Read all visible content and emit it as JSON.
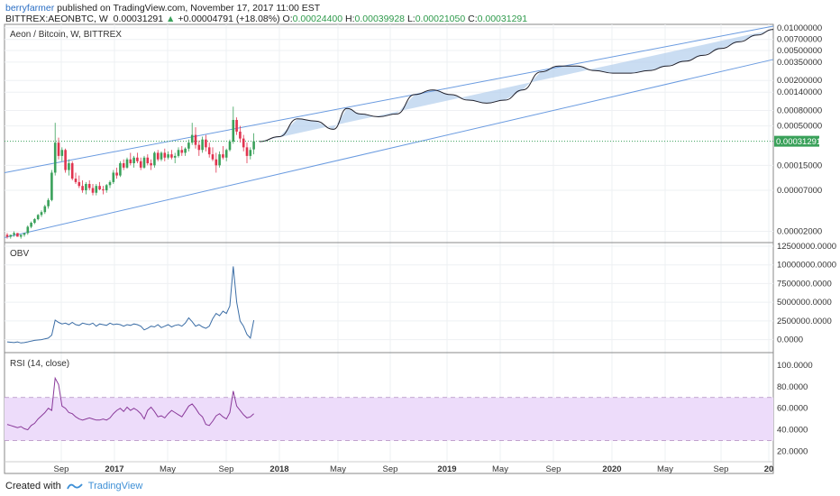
{
  "header": {
    "author": "berryfarmer",
    "published": " published on TradingView.com, November 17, 2017 11:00 EST",
    "symbol": "BITTREX:AEONBTC, W",
    "last": "0.00031291",
    "change_arrow": "▲",
    "change": "+0.00004791 (+18.08%)",
    "o_label": "O:",
    "o_val": "0.00024400",
    "h_label": "H:",
    "h_val": "0.00039928",
    "l_label": "L:",
    "l_val": "0.00021050",
    "c_label": "C:",
    "c_val": "0.00031291"
  },
  "footer": {
    "created_with": "Created with",
    "brand": "TradingView",
    "logo_icon": "tradingview-logo-icon"
  },
  "colors": {
    "up": "#3aa15a",
    "down": "#e0344f",
    "channel": "#6a9be0",
    "projection_fill": "#b8d2ee",
    "obv_line": "#3c6ea6",
    "rsi_line": "#8a3a9a",
    "rsi_band": "#eddcfa",
    "last_badge": "#3aa15a"
  },
  "chart_data": [
    {
      "type": "candlestick",
      "title": "Aeon / Bitcoin, W, BITTREX",
      "y_scale": "log",
      "ylim": [
        1.5e-05,
        0.0105
      ],
      "y_ticks": [
        "0.01000000",
        "0.00700000",
        "0.00500000",
        "0.00350000",
        "0.00200000",
        "0.00140000",
        "0.00080000",
        "0.00050000",
        "0.00015000",
        "0.00007000",
        "0.00002000"
      ],
      "x_ticks": [
        "Sep",
        "2017",
        "May",
        "Sep",
        "2018",
        "May",
        "Sep",
        "2019",
        "May",
        "Sep",
        "2020",
        "May",
        "Sep",
        "20"
      ],
      "last_price_label": "0.00031291",
      "last_price": 0.00031291,
      "candles": [
        [
          1.8e-05,
          1.9e-05,
          1.6e-05,
          1.7e-05
        ],
        [
          1.7e-05,
          1.8e-05,
          1.6e-05,
          1.8e-05
        ],
        [
          1.8e-05,
          2e-05,
          1.7e-05,
          1.9e-05
        ],
        [
          1.9e-05,
          1.9e-05,
          1.7e-05,
          1.7e-05
        ],
        [
          1.7e-05,
          1.8e-05,
          1.6e-05,
          1.8e-05
        ],
        [
          1.8e-05,
          1.9e-05,
          1.7e-05,
          1.9e-05
        ],
        [
          1.9e-05,
          2.4e-05,
          1.8e-05,
          2.3e-05
        ],
        [
          2.3e-05,
          2.7e-05,
          2.2e-05,
          2.6e-05
        ],
        [
          2.6e-05,
          3e-05,
          2.5e-05,
          2.9e-05
        ],
        [
          2.9e-05,
          3.4e-05,
          2.8e-05,
          3.3e-05
        ],
        [
          3.3e-05,
          3.8e-05,
          3.1e-05,
          3.6e-05
        ],
        [
          3.6e-05,
          4.5e-05,
          3.4e-05,
          4.3e-05
        ],
        [
          4.3e-05,
          5.5e-05,
          4e-05,
          5.2e-05
        ],
        [
          5.2e-05,
          0.00013,
          5e-05,
          0.00012
        ],
        [
          0.00012,
          0.00055,
          0.00011,
          0.0003
        ],
        [
          0.0003,
          0.00035,
          0.00018,
          0.0002
        ],
        [
          0.0002,
          0.00026,
          0.00017,
          0.00024
        ],
        [
          0.00024,
          0.00025,
          0.00012,
          0.00013
        ],
        [
          0.00013,
          0.00018,
          0.00011,
          0.00016
        ],
        [
          0.00016,
          0.00017,
          9.5e-05,
          0.0001
        ],
        [
          0.0001,
          0.00012,
          8.5e-05,
          9e-05
        ],
        [
          9e-05,
          0.00011,
          7.5e-05,
          8e-05
        ],
        [
          8e-05,
          9.5e-05,
          6.5e-05,
          7e-05
        ],
        [
          7e-05,
          9e-05,
          6.2e-05,
          8.5e-05
        ],
        [
          8.5e-05,
          9.5e-05,
          7e-05,
          7.5e-05
        ],
        [
          7.5e-05,
          8.5e-05,
          6e-05,
          6.5e-05
        ],
        [
          6.5e-05,
          8.5e-05,
          6e-05,
          8e-05
        ],
        [
          8e-05,
          9e-05,
          7e-05,
          7.2e-05
        ],
        [
          7.2e-05,
          8e-05,
          6.2e-05,
          7e-05
        ],
        [
          7e-05,
          8.5e-05,
          6.5e-05,
          8.2e-05
        ],
        [
          8.2e-05,
          9.5e-05,
          7.5e-05,
          9e-05
        ],
        [
          9e-05,
          0.00013,
          8.5e-05,
          0.00012
        ],
        [
          0.00012,
          0.00014,
          0.0001,
          0.00011
        ],
        [
          0.00011,
          0.00017,
          0.000105,
          0.00016
        ],
        [
          0.00016,
          0.00018,
          0.00013,
          0.00014
        ],
        [
          0.00014,
          0.00019,
          0.000135,
          0.00018
        ],
        [
          0.00018,
          0.00022,
          0.00015,
          0.00016
        ],
        [
          0.00016,
          0.0002,
          0.00014,
          0.00019
        ],
        [
          0.00019,
          0.00022,
          0.00016,
          0.00017
        ],
        [
          0.00017,
          0.00019,
          0.00013,
          0.00014
        ],
        [
          0.00014,
          0.0002,
          0.000135,
          0.00019
        ],
        [
          0.00019,
          0.00021,
          0.00015,
          0.00016
        ],
        [
          0.00016,
          0.00018,
          0.00013,
          0.00015
        ],
        [
          0.00015,
          0.00023,
          0.00014,
          0.00022
        ],
        [
          0.00022,
          0.00024,
          0.00017,
          0.00018
        ],
        [
          0.00018,
          0.00023,
          0.00017,
          0.00022
        ],
        [
          0.00022,
          0.00025,
          0.00017,
          0.00019
        ],
        [
          0.00019,
          0.00023,
          0.00018,
          0.00021
        ],
        [
          0.00021,
          0.00024,
          0.00018,
          0.00019
        ],
        [
          0.00019,
          0.00022,
          0.00016,
          0.0002
        ],
        [
          0.0002,
          0.00026,
          0.00019,
          0.00024
        ],
        [
          0.00024,
          0.00027,
          0.0002,
          0.00022
        ],
        [
          0.00022,
          0.00026,
          0.0002,
          0.00025
        ],
        [
          0.00025,
          0.00033,
          0.00023,
          0.0003
        ],
        [
          0.0003,
          0.00055,
          0.00028,
          0.00038
        ],
        [
          0.00038,
          0.00048,
          0.00025,
          0.00028
        ],
        [
          0.00028,
          0.00032,
          0.0002,
          0.00024
        ],
        [
          0.00024,
          0.00036,
          0.00022,
          0.00033
        ],
        [
          0.00033,
          0.00038,
          0.00023,
          0.00026
        ],
        [
          0.00026,
          0.0003,
          0.00019,
          0.00021
        ],
        [
          0.00021,
          0.00026,
          0.00017,
          0.00018
        ],
        [
          0.00018,
          0.00022,
          0.00012,
          0.00015
        ],
        [
          0.00015,
          0.00023,
          0.00014,
          0.00021
        ],
        [
          0.00021,
          0.00027,
          0.00018,
          0.00019
        ],
        [
          0.00019,
          0.00025,
          0.00017,
          0.00024
        ],
        [
          0.00024,
          0.00033,
          0.00023,
          0.00031
        ],
        [
          0.00031,
          0.0009,
          0.00029,
          0.0006
        ],
        [
          0.0006,
          0.00065,
          0.00038,
          0.00042
        ],
        [
          0.00042,
          0.0005,
          0.0003,
          0.00034
        ],
        [
          0.00034,
          0.00038,
          0.00023,
          0.00026
        ],
        [
          0.00026,
          0.0003,
          0.00016,
          0.0002
        ],
        [
          0.0002,
          0.00026,
          0.00018,
          0.00024
        ],
        [
          0.000244,
          0.000399,
          0.00021,
          0.000313
        ]
      ],
      "projection": [
        [
          288,
          0.00031
        ],
        [
          310,
          0.00036
        ],
        [
          330,
          0.00062
        ],
        [
          350,
          0.00058
        ],
        [
          370,
          0.00045
        ],
        [
          385,
          0.00085
        ],
        [
          400,
          0.00072
        ],
        [
          420,
          0.00066
        ],
        [
          440,
          0.00072
        ],
        [
          460,
          0.0013
        ],
        [
          480,
          0.0015
        ],
        [
          500,
          0.0013
        ],
        [
          520,
          0.0011
        ],
        [
          540,
          0.001
        ],
        [
          560,
          0.0011
        ],
        [
          580,
          0.0015
        ],
        [
          600,
          0.0026
        ],
        [
          620,
          0.0031
        ],
        [
          640,
          0.0031
        ],
        [
          660,
          0.0027
        ],
        [
          680,
          0.0025
        ],
        [
          700,
          0.0025
        ],
        [
          720,
          0.0027
        ],
        [
          740,
          0.0031
        ],
        [
          760,
          0.0036
        ],
        [
          780,
          0.0043
        ],
        [
          800,
          0.0053
        ],
        [
          820,
          0.0065
        ],
        [
          840,
          0.008
        ],
        [
          858,
          0.0095
        ]
      ],
      "channel": {
        "upper": [
          [
            5,
            0.00012
          ],
          [
            858,
            0.0105
          ]
        ],
        "lower": [
          [
            5,
            1.65e-05
          ],
          [
            858,
            0.0038
          ]
        ]
      }
    },
    {
      "type": "line",
      "title": "OBV",
      "y_ticks": [
        "12500000.0000",
        "10000000.0000",
        "7500000.0000",
        "5000000.0000",
        "2500000.0000",
        "0.0000"
      ],
      "ylim": [
        -1500000,
        12500000
      ],
      "values": [
        -300000,
        -350000,
        -400000,
        -300000,
        -450000,
        -400000,
        -300000,
        -200000,
        -100000,
        -50000,
        0,
        100000,
        200000,
        600000,
        2600000,
        2300000,
        2100000,
        2200000,
        2000000,
        2300000,
        2000000,
        1900000,
        2200000,
        2100000,
        2000000,
        2200000,
        1800000,
        2100000,
        2000000,
        1900000,
        2200000,
        2000000,
        2100000,
        2000000,
        1800000,
        2000000,
        1900000,
        2100000,
        2000000,
        1800000,
        1300000,
        1500000,
        1800000,
        1700000,
        2000000,
        1600000,
        1800000,
        2000000,
        1700000,
        1900000,
        2000000,
        1800000,
        2200000,
        2900000,
        2400000,
        1800000,
        2000000,
        1700000,
        1500000,
        1800000,
        2800000,
        3500000,
        3200000,
        3800000,
        3500000,
        4500000,
        9800000,
        5000000,
        2500000,
        1800000,
        700000,
        200000,
        2600000
      ]
    },
    {
      "type": "line",
      "title": "RSI (14, close)",
      "y_ticks": [
        "100.0000",
        "80.0000",
        "60.0000",
        "40.0000",
        "20.0000"
      ],
      "ylim": [
        12,
        110
      ],
      "band": [
        30,
        70
      ],
      "values": [
        45,
        44,
        43,
        42,
        43,
        41,
        40,
        44,
        46,
        50,
        53,
        56,
        60,
        58,
        88,
        82,
        62,
        60,
        56,
        55,
        52,
        50,
        49,
        50,
        51,
        50,
        49,
        49,
        50,
        49,
        51,
        55,
        58,
        60,
        57,
        61,
        58,
        60,
        58,
        55,
        50,
        58,
        61,
        57,
        52,
        53,
        51,
        55,
        58,
        56,
        54,
        52,
        57,
        62,
        64,
        60,
        55,
        52,
        45,
        44,
        48,
        53,
        55,
        52,
        50,
        56,
        76,
        62,
        58,
        54,
        51,
        52,
        55
      ]
    }
  ]
}
